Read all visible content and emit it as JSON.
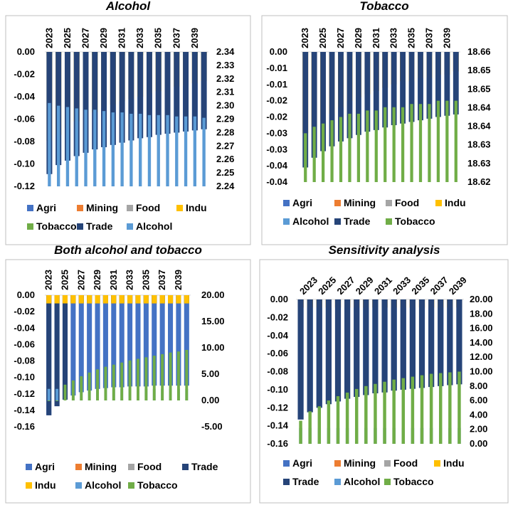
{
  "colors": {
    "Agri": "#4472c4",
    "Mining": "#ed7d31",
    "Food": "#a5a5a5",
    "Indu": "#ffc000",
    "Alcohol": "#5b9bd5",
    "Trade": "#264478",
    "Tobacco": "#70ad47",
    "frame": "#bfbfbf",
    "grid": "#d9d9d9"
  },
  "chart_data": [
    {
      "type": "bar",
      "title": "Alcohol",
      "categories": [
        "2023",
        "2024",
        "2025",
        "2026",
        "2027",
        "2028",
        "2029",
        "2030",
        "2031",
        "2032",
        "2033",
        "2034",
        "2035",
        "2036",
        "2037",
        "2038",
        "2039",
        "2040"
      ],
      "x_tick_labels": [
        "2023",
        "2025",
        "2027",
        "2029",
        "2031",
        "2033",
        "2035",
        "2037",
        "2039"
      ],
      "left_axis": {
        "min": -0.12,
        "max": 0.0,
        "ticks": [
          "0.00",
          "-0.02",
          "-0.04",
          "-0.06",
          "-0.08",
          "-0.10",
          "-0.12"
        ]
      },
      "right_axis": {
        "min": 2.24,
        "max": 2.34,
        "ticks": [
          "2.34",
          "2.33",
          "2.32",
          "2.31",
          "2.30",
          "2.29",
          "2.28",
          "2.27",
          "2.26",
          "2.25",
          "2.24"
        ]
      },
      "series": [
        {
          "name": "Agri",
          "axis": "left",
          "values": [
            -0.109,
            -0.101,
            -0.097,
            -0.093,
            -0.09,
            -0.087,
            -0.085,
            -0.083,
            -0.081,
            -0.079,
            -0.077,
            -0.076,
            -0.074,
            -0.073,
            -0.072,
            -0.071,
            -0.07,
            -0.069
          ]
        },
        {
          "name": "Mining",
          "axis": "left",
          "values": [
            -0.004,
            -0.004,
            -0.004,
            -0.004,
            -0.003,
            -0.003,
            -0.003,
            -0.003,
            -0.003,
            -0.003,
            -0.003,
            -0.003,
            -0.003,
            -0.003,
            -0.003,
            -0.003,
            -0.003,
            -0.003
          ]
        },
        {
          "name": "Food",
          "axis": "left",
          "values": [
            -0.079,
            -0.074,
            -0.068,
            -0.062,
            -0.058,
            -0.054,
            -0.05,
            -0.047,
            -0.044,
            -0.042,
            -0.04,
            -0.037,
            -0.035,
            -0.033,
            -0.031,
            -0.03,
            -0.028,
            -0.026
          ]
        },
        {
          "name": "Indu",
          "axis": "left",
          "values": [
            -0.079,
            -0.074,
            -0.068,
            -0.062,
            -0.058,
            -0.054,
            -0.05,
            -0.047,
            -0.044,
            -0.042,
            -0.04,
            -0.037,
            -0.035,
            -0.033,
            -0.031,
            -0.03,
            -0.028,
            -0.026
          ]
        },
        {
          "name": "Tobacco",
          "axis": "left",
          "values": [
            -0.003,
            -0.003,
            -0.003,
            -0.003,
            -0.003,
            -0.003,
            -0.003,
            -0.003,
            -0.003,
            -0.003,
            -0.003,
            -0.003,
            -0.003,
            -0.003,
            -0.003,
            -0.003,
            -0.003,
            -0.003
          ]
        },
        {
          "name": "Trade",
          "axis": "left",
          "values": [
            -0.109,
            -0.101,
            -0.097,
            -0.093,
            -0.09,
            -0.087,
            -0.085,
            -0.083,
            -0.081,
            -0.079,
            -0.077,
            -0.076,
            -0.074,
            -0.073,
            -0.072,
            -0.071,
            -0.07,
            -0.069
          ]
        },
        {
          "name": "Alcohol",
          "axis": "right",
          "values": [
            2.302,
            2.3,
            2.299,
            2.298,
            2.297,
            2.297,
            2.296,
            2.295,
            2.295,
            2.294,
            2.294,
            2.293,
            2.293,
            2.293,
            2.292,
            2.292,
            2.292,
            2.291
          ]
        }
      ],
      "legend": [
        [
          "Agri",
          "Mining",
          "Food",
          "Indu"
        ],
        [
          "Tobacco",
          "Trade",
          "Alcohol"
        ]
      ]
    },
    {
      "type": "bar",
      "title": "Tobacco",
      "categories": [
        "2023",
        "2024",
        "2025",
        "2026",
        "2027",
        "2028",
        "2029",
        "2030",
        "2031",
        "2032",
        "2033",
        "2034",
        "2035",
        "2036",
        "2037",
        "2038",
        "2039",
        "2040"
      ],
      "x_tick_labels": [
        "2023",
        "2025",
        "2027",
        "2029",
        "2031",
        "2033",
        "2035",
        "2037",
        "2039"
      ],
      "left_axis": {
        "min": -0.04,
        "max": 0.0,
        "ticks": [
          "0.00",
          "-0.01",
          "-0.01",
          "-0.02",
          "-0.02",
          "-0.03",
          "-0.03",
          "-0.04",
          "-0.04"
        ]
      },
      "right_axis": {
        "min": 18.62,
        "max": 18.66,
        "ticks": [
          "18.66",
          "18.65",
          "18.65",
          "18.64",
          "18.64",
          "18.63",
          "18.63",
          "18.62"
        ]
      },
      "series": [
        {
          "name": "Agri",
          "axis": "left",
          "values": [
            -0.0355,
            -0.0325,
            -0.0305,
            -0.029,
            -0.0275,
            -0.0265,
            -0.0255,
            -0.0245,
            -0.024,
            -0.0232,
            -0.0225,
            -0.022,
            -0.0215,
            -0.021,
            -0.0205,
            -0.02,
            -0.0196,
            -0.0192
          ]
        },
        {
          "name": "Mining",
          "axis": "left",
          "values": [
            -0.025,
            -0.023,
            -0.021,
            -0.019,
            -0.017,
            -0.015,
            -0.014,
            -0.013,
            -0.012,
            -0.011,
            -0.01,
            -0.009,
            -0.009,
            -0.008,
            -0.008,
            -0.007,
            -0.007,
            -0.006
          ]
        },
        {
          "name": "Food",
          "axis": "left",
          "values": [
            -0.025,
            -0.023,
            -0.021,
            -0.019,
            -0.017,
            -0.015,
            -0.014,
            -0.013,
            -0.012,
            -0.011,
            -0.01,
            -0.009,
            -0.009,
            -0.008,
            -0.008,
            -0.007,
            -0.007,
            -0.006
          ]
        },
        {
          "name": "Indu",
          "axis": "left",
          "values": [
            -0.025,
            -0.023,
            -0.021,
            -0.019,
            -0.017,
            -0.015,
            -0.014,
            -0.013,
            -0.012,
            -0.011,
            -0.01,
            -0.009,
            -0.009,
            -0.008,
            -0.008,
            -0.007,
            -0.007,
            -0.006
          ]
        },
        {
          "name": "Alcohol",
          "axis": "left",
          "values": [
            -0.001,
            -0.001,
            -0.001,
            -0.001,
            -0.001,
            -0.001,
            -0.001,
            -0.001,
            -0.001,
            -0.001,
            -0.001,
            -0.001,
            -0.001,
            -0.001,
            -0.001,
            -0.001,
            -0.001,
            -0.001
          ]
        },
        {
          "name": "Trade",
          "axis": "left",
          "values": [
            -0.0355,
            -0.0325,
            -0.0305,
            -0.029,
            -0.0275,
            -0.0265,
            -0.0255,
            -0.0245,
            -0.024,
            -0.0232,
            -0.0225,
            -0.022,
            -0.0215,
            -0.021,
            -0.0205,
            -0.02,
            -0.0196,
            -0.0192
          ]
        },
        {
          "name": "Tobacco",
          "axis": "right",
          "values": [
            18.635,
            18.637,
            18.638,
            18.639,
            18.64,
            18.641,
            18.641,
            18.642,
            18.642,
            18.643,
            18.643,
            18.643,
            18.644,
            18.644,
            18.644,
            18.645,
            18.645,
            18.645
          ]
        }
      ],
      "legend": [
        [
          "Agri",
          "Mining",
          "Food",
          "Indu"
        ],
        [
          "Alcohol",
          "Trade",
          "Tobacco"
        ]
      ]
    },
    {
      "type": "bar",
      "title": "Both alcohol and tobacco",
      "categories": [
        "2023",
        "2024",
        "2025",
        "2026",
        "2027",
        "2028",
        "2029",
        "2030",
        "2031",
        "2032",
        "2033",
        "2034",
        "2035",
        "2036",
        "2037",
        "2038",
        "2039",
        "2040"
      ],
      "x_tick_labels": [
        "2023",
        "2025",
        "2027",
        "2029",
        "2031",
        "2033",
        "2035",
        "2037",
        "2039"
      ],
      "left_axis": {
        "min": -0.16,
        "max": 0.0,
        "ticks": [
          "0.00",
          "-0.02",
          "-0.04",
          "-0.06",
          "-0.08",
          "-0.10",
          "-0.12",
          "-0.14",
          "-0.16"
        ]
      },
      "right_axis": {
        "min": -5.0,
        "max": 20.0,
        "ticks": [
          "20.00",
          "15.00",
          "10.00",
          "5.00",
          "0.00",
          "-5.00"
        ]
      },
      "series": [
        {
          "name": "Agri",
          "axis": "left",
          "values": [
            -0.146,
            -0.135,
            -0.127,
            -0.122,
            -0.118,
            -0.116,
            -0.114,
            -0.113,
            -0.112,
            -0.112,
            -0.111,
            -0.111,
            -0.111,
            -0.11,
            -0.11,
            -0.11,
            -0.11,
            -0.11
          ]
        },
        {
          "name": "Mining",
          "axis": "left",
          "values": [
            -0.01,
            -0.01,
            -0.01,
            -0.01,
            -0.01,
            -0.01,
            -0.01,
            -0.01,
            -0.01,
            -0.01,
            -0.01,
            -0.01,
            -0.01,
            -0.01,
            -0.01,
            -0.01,
            -0.01,
            -0.01
          ]
        },
        {
          "name": "Food",
          "axis": "left",
          "values": [
            -0.01,
            -0.01,
            -0.01,
            -0.01,
            -0.01,
            -0.01,
            -0.01,
            -0.01,
            -0.01,
            -0.01,
            -0.01,
            -0.01,
            -0.01,
            -0.01,
            -0.01,
            -0.01,
            -0.01,
            -0.01
          ]
        },
        {
          "name": "Trade",
          "axis": "left",
          "values": [
            -0.146,
            -0.135,
            -0.127,
            -0.01,
            -0.01,
            -0.01,
            -0.01,
            -0.01,
            -0.01,
            -0.01,
            -0.01,
            -0.01,
            -0.01,
            -0.01,
            -0.01,
            -0.01,
            -0.01,
            -0.01
          ]
        },
        {
          "name": "Indu",
          "axis": "left",
          "values": [
            -0.01,
            -0.01,
            -0.01,
            -0.01,
            -0.01,
            -0.01,
            -0.01,
            -0.01,
            -0.01,
            -0.01,
            -0.01,
            -0.01,
            -0.01,
            -0.01,
            -0.01,
            -0.01,
            -0.01,
            -0.01
          ]
        },
        {
          "name": "Alcohol",
          "axis": "right",
          "values": [
            2.2,
            2.2,
            2.2,
            2.2,
            2.2,
            2.2,
            2.2,
            2.2,
            2.2,
            2.2,
            2.2,
            2.2,
            2.2,
            2.2,
            2.2,
            2.2,
            2.2,
            2.2
          ]
        },
        {
          "name": "Tobacco",
          "axis": "right",
          "values": [
            0.0,
            0.0,
            3.0,
            3.8,
            4.6,
            5.3,
            5.9,
            6.4,
            6.8,
            7.2,
            7.6,
            7.9,
            8.2,
            8.5,
            8.8,
            9.1,
            9.3,
            9.6
          ]
        }
      ],
      "legend": [
        [
          "Agri",
          "Mining",
          "Food",
          "Trade"
        ],
        [
          "Indu",
          "Alcohol",
          "Tobacco"
        ]
      ]
    },
    {
      "type": "bar",
      "title": "Sensitivity analysis",
      "categories": [
        "2023",
        "2024",
        "2025",
        "2026",
        "2027",
        "2028",
        "2029",
        "2030",
        "2031",
        "2032",
        "2033",
        "2034",
        "2035",
        "2036",
        "2037",
        "2038",
        "2039",
        "2040"
      ],
      "x_tick_labels": [
        "2023",
        "2025",
        "2027",
        "2029",
        "2031",
        "2033",
        "2035",
        "2037",
        "2039"
      ],
      "left_axis": {
        "min": -0.16,
        "max": 0.0,
        "ticks": [
          "0.00",
          "-0.02",
          "-0.04",
          "-0.06",
          "-0.08",
          "-0.10",
          "-0.12",
          "-0.14",
          "-0.16"
        ]
      },
      "right_axis": {
        "min": 0.0,
        "max": 20.0,
        "ticks": [
          "20.00",
          "18.00",
          "16.00",
          "14.00",
          "12.00",
          "10.00",
          "8.00",
          "6.00",
          "4.00",
          "2.00",
          "0.00"
        ]
      },
      "series": [
        {
          "name": "Agri",
          "axis": "left",
          "values": [
            -0.133,
            -0.125,
            -0.12,
            -0.116,
            -0.113,
            -0.11,
            -0.108,
            -0.106,
            -0.104,
            -0.103,
            -0.101,
            -0.1,
            -0.099,
            -0.098,
            -0.097,
            -0.096,
            -0.095,
            -0.094
          ]
        },
        {
          "name": "Mining",
          "axis": "left",
          "values": [
            -0.009,
            -0.009,
            -0.009,
            -0.009,
            -0.009,
            -0.009,
            -0.009,
            -0.009,
            -0.009,
            -0.009,
            -0.009,
            -0.009,
            -0.009,
            -0.009,
            -0.009,
            -0.009,
            -0.009,
            -0.009
          ]
        },
        {
          "name": "Food",
          "axis": "left",
          "values": [
            -0.009,
            -0.009,
            -0.009,
            -0.009,
            -0.009,
            -0.009,
            -0.009,
            -0.009,
            -0.009,
            -0.009,
            -0.009,
            -0.009,
            -0.009,
            -0.009,
            -0.009,
            -0.009,
            -0.009,
            -0.009
          ]
        },
        {
          "name": "Indu",
          "axis": "left",
          "values": [
            -0.009,
            -0.009,
            -0.009,
            -0.009,
            -0.009,
            -0.009,
            -0.009,
            -0.009,
            -0.009,
            -0.009,
            -0.009,
            -0.009,
            -0.009,
            -0.009,
            -0.009,
            -0.009,
            -0.009,
            -0.009
          ]
        },
        {
          "name": "Trade",
          "axis": "left",
          "values": [
            -0.133,
            -0.125,
            -0.12,
            -0.116,
            -0.113,
            -0.11,
            -0.108,
            -0.106,
            -0.104,
            -0.103,
            -0.101,
            -0.1,
            -0.099,
            -0.098,
            -0.097,
            -0.096,
            -0.095,
            -0.094
          ]
        },
        {
          "name": "Alcohol",
          "axis": "right",
          "values": [
            2.2,
            2.2,
            2.2,
            2.2,
            2.2,
            2.2,
            2.2,
            2.2,
            2.2,
            2.2,
            2.2,
            2.2,
            2.2,
            2.2,
            2.2,
            2.2,
            2.2,
            2.2
          ]
        },
        {
          "name": "Tobacco",
          "axis": "right",
          "values": [
            3.2,
            4.5,
            5.2,
            6.0,
            6.6,
            7.1,
            7.6,
            8.0,
            8.3,
            8.6,
            8.9,
            9.1,
            9.3,
            9.5,
            9.7,
            9.8,
            9.9,
            10.0
          ]
        }
      ],
      "legend": [
        [
          "Agri",
          "Mining",
          "Food",
          "Indu"
        ],
        [
          "Trade",
          "Alcohol",
          "Tobacco"
        ]
      ]
    }
  ]
}
